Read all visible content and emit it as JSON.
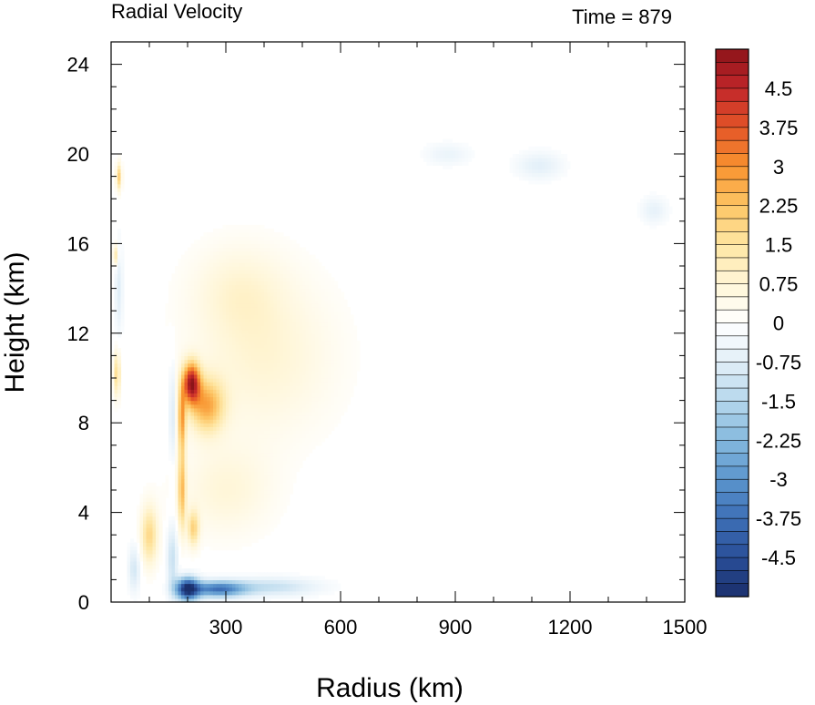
{
  "chart_data": {
    "type": "heatmap",
    "title_left": "Radial Velocity",
    "title_right": "Time = 879",
    "xlabel": "Radius (km)",
    "ylabel": "Height (km)",
    "xlim": [
      0,
      1500
    ],
    "ylim": [
      0,
      25
    ],
    "x_ticks": [
      300,
      600,
      900,
      1200,
      1500
    ],
    "x_tick_labels": [
      "300",
      "600",
      "900",
      "1200",
      "1500"
    ],
    "y_ticks": [
      0,
      4,
      8,
      12,
      16,
      20,
      24
    ],
    "y_tick_labels": [
      "0",
      "4",
      "8",
      "12",
      "16",
      "20",
      "24"
    ],
    "colorbar": {
      "min": -5.25,
      "max": 5.25,
      "step": 0.25,
      "labels": [
        "4.5",
        "3.75",
        "3",
        "2.25",
        "1.5",
        "0.75",
        "0",
        "-0.75",
        "-1.5",
        "-2.25",
        "-3",
        "-3.75",
        "-4.5"
      ],
      "label_values": [
        4.5,
        3.75,
        3,
        2.25,
        1.5,
        0.75,
        0,
        -0.75,
        -1.5,
        -2.25,
        -3,
        -3.75,
        -4.5
      ],
      "palette": [
        "#1a2f6b",
        "#2a4e98",
        "#3d6fb6",
        "#5b95cd",
        "#85b9de",
        "#b5d7ec",
        "#e2eff8",
        "#ffffff",
        "#fff6d8",
        "#fee6a3",
        "#fdc565",
        "#f8932f",
        "#e45528",
        "#c1262a",
        "#8c1419"
      ]
    },
    "features": [
      {
        "r": 210,
        "z": 9.8,
        "sr": 22,
        "sz": 0.9,
        "v": 4.5
      },
      {
        "r": 250,
        "z": 8.8,
        "sr": 45,
        "sz": 1.2,
        "v": 2.5
      },
      {
        "r": 185,
        "z": 8.2,
        "sr": 10,
        "sz": 1.5,
        "v": 2.5
      },
      {
        "r": 185,
        "z": 5.0,
        "sr": 10,
        "sz": 1.8,
        "v": 2.2
      },
      {
        "r": 215,
        "z": 3.3,
        "sr": 15,
        "sz": 0.8,
        "v": 1.8
      },
      {
        "r": 100,
        "z": 3.0,
        "sr": 22,
        "sz": 1.3,
        "v": 1.8
      },
      {
        "r": 20,
        "z": 19.0,
        "sr": 7,
        "sz": 0.6,
        "v": 2.0
      },
      {
        "r": 12,
        "z": 15.5,
        "sr": 7,
        "sz": 0.5,
        "v": 1.5
      },
      {
        "r": 15,
        "z": 10.2,
        "sr": 8,
        "sz": 1.0,
        "v": 1.8
      },
      {
        "r": 400,
        "z": 11.0,
        "sr": 180,
        "sz": 3.5,
        "v": 0.8
      },
      {
        "r": 330,
        "z": 14.0,
        "sr": 120,
        "sz": 2.0,
        "v": 0.6
      },
      {
        "r": 300,
        "z": 5.0,
        "sr": 120,
        "sz": 2.0,
        "v": 0.7
      },
      {
        "r": 200,
        "z": 0.6,
        "sr": 30,
        "sz": 0.5,
        "v": -5.0
      },
      {
        "r": 280,
        "z": 0.6,
        "sr": 70,
        "sz": 0.35,
        "v": -3.5
      },
      {
        "r": 420,
        "z": 0.7,
        "sr": 120,
        "sz": 0.4,
        "v": -1.2
      },
      {
        "r": 160,
        "z": 2.0,
        "sr": 14,
        "sz": 1.5,
        "v": -1.2
      },
      {
        "r": 160,
        "z": 8.5,
        "sr": 8,
        "sz": 2.2,
        "v": -1.0
      },
      {
        "r": 20,
        "z": 14.0,
        "sr": 10,
        "sz": 2.0,
        "v": -0.8
      },
      {
        "r": 1120,
        "z": 19.5,
        "sr": 60,
        "sz": 0.6,
        "v": -0.7
      },
      {
        "r": 1420,
        "z": 17.5,
        "sr": 35,
        "sz": 0.6,
        "v": -0.6
      },
      {
        "r": 880,
        "z": 20.0,
        "sr": 60,
        "sz": 0.5,
        "v": -0.5
      },
      {
        "r": 60,
        "z": 1.5,
        "sr": 15,
        "sz": 1.0,
        "v": -1.0
      }
    ]
  }
}
